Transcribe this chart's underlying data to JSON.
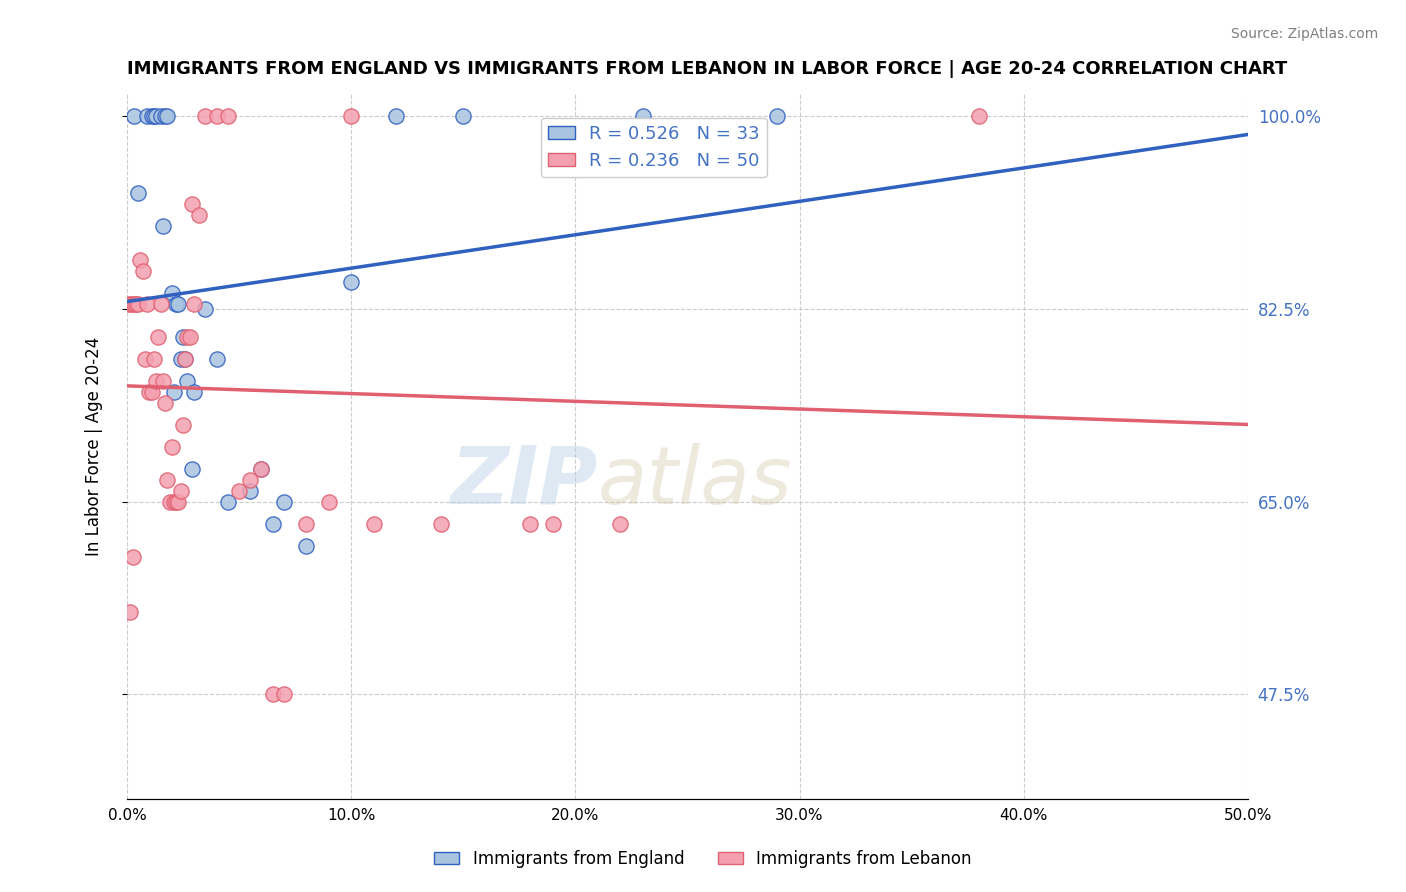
{
  "title": "IMMIGRANTS FROM ENGLAND VS IMMIGRANTS FROM LEBANON IN LABOR FORCE | AGE 20-24 CORRELATION CHART",
  "source": "Source: ZipAtlas.com",
  "ylabel": "In Labor Force | Age 20-24",
  "y_ticks": [
    47.5,
    65.0,
    82.5,
    100.0
  ],
  "y_tick_labels": [
    "47.5%",
    "65.0%",
    "82.5%",
    "100.0%"
  ],
  "x_min": 0.0,
  "x_max": 50.0,
  "y_min": 38.0,
  "y_max": 102.0,
  "england_R": 0.526,
  "england_N": 33,
  "lebanon_R": 0.236,
  "lebanon_N": 50,
  "england_color": "#a8c4e0",
  "england_line_color": "#3060c0",
  "lebanon_color": "#f4a0b0",
  "lebanon_line_color": "#e06070",
  "england_scatter_x": [
    0.3,
    0.5,
    0.9,
    1.1,
    1.2,
    1.3,
    1.5,
    1.6,
    1.7,
    1.8,
    2.0,
    2.1,
    2.2,
    2.3,
    2.4,
    2.5,
    2.6,
    2.7,
    2.9,
    3.0,
    3.5,
    4.0,
    4.5,
    5.5,
    6.0,
    6.5,
    7.0,
    8.0,
    10.0,
    12.0,
    15.0,
    23.0,
    29.0
  ],
  "england_scatter_y": [
    100.0,
    93.0,
    100.0,
    100.0,
    100.0,
    100.0,
    100.0,
    90.0,
    100.0,
    100.0,
    84.0,
    75.0,
    83.0,
    83.0,
    78.0,
    80.0,
    78.0,
    76.0,
    68.0,
    75.0,
    82.5,
    78.0,
    65.0,
    66.0,
    68.0,
    63.0,
    65.0,
    61.0,
    85.0,
    100.0,
    100.0,
    100.0,
    100.0
  ],
  "lebanon_scatter_x": [
    0.1,
    0.2,
    0.3,
    0.4,
    0.5,
    0.6,
    0.7,
    0.8,
    0.9,
    1.0,
    1.1,
    1.2,
    1.3,
    1.4,
    1.5,
    1.6,
    1.7,
    1.8,
    1.9,
    2.0,
    2.1,
    2.2,
    2.3,
    2.4,
    2.5,
    2.6,
    2.7,
    2.8,
    2.9,
    3.0,
    3.2,
    3.5,
    4.0,
    4.5,
    5.0,
    5.5,
    6.0,
    6.5,
    7.0,
    8.0,
    9.0,
    10.0,
    11.0,
    14.0,
    18.0,
    19.0,
    22.0,
    38.0,
    0.15,
    0.25
  ],
  "lebanon_scatter_y": [
    83.0,
    83.0,
    83.0,
    83.0,
    83.0,
    87.0,
    86.0,
    78.0,
    83.0,
    75.0,
    75.0,
    78.0,
    76.0,
    80.0,
    83.0,
    76.0,
    74.0,
    67.0,
    65.0,
    70.0,
    65.0,
    65.0,
    65.0,
    66.0,
    72.0,
    78.0,
    80.0,
    80.0,
    92.0,
    83.0,
    91.0,
    100.0,
    100.0,
    100.0,
    66.0,
    67.0,
    68.0,
    47.5,
    47.5,
    63.0,
    65.0,
    100.0,
    63.0,
    63.0,
    63.0,
    63.0,
    63.0,
    100.0,
    55.0,
    60.0
  ],
  "watermark_zip": "ZIP",
  "watermark_atlas": "atlas",
  "legend_england_label": "Immigrants from England",
  "legend_lebanon_label": "Immigrants from Lebanon"
}
